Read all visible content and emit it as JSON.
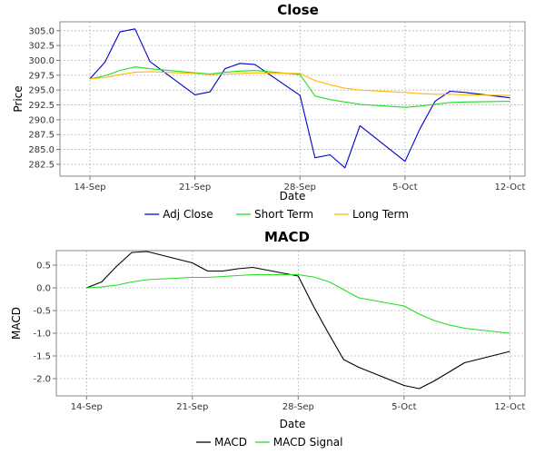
{
  "chart_data": [
    {
      "type": "line",
      "title": "Close",
      "xlabel": "Date",
      "ylabel": "Price",
      "xlim": [
        "2015-09-12",
        "2015-10-13"
      ],
      "ylim": [
        280.5,
        306.5
      ],
      "x_ticks": [
        {
          "date": "2015-09-14",
          "label": "14-Sep"
        },
        {
          "date": "2015-09-21",
          "label": "21-Sep"
        },
        {
          "date": "2015-09-28",
          "label": "28-Sep"
        },
        {
          "date": "2015-10-05",
          "label": "5-Oct"
        },
        {
          "date": "2015-10-12",
          "label": "12-Oct"
        }
      ],
      "y_ticks": [
        "282.5",
        "285.0",
        "287.5",
        "290.0",
        "292.5",
        "295.0",
        "297.5",
        "300.0",
        "302.5",
        "305.0"
      ],
      "grid": true,
      "legend": "bottom",
      "x": [
        "2015-09-14",
        "2015-09-15",
        "2015-09-16",
        "2015-09-17",
        "2015-09-18",
        "2015-09-21",
        "2015-09-22",
        "2015-09-23",
        "2015-09-24",
        "2015-09-25",
        "2015-09-28",
        "2015-09-29",
        "2015-09-30",
        "2015-10-01",
        "2015-10-02",
        "2015-10-05",
        "2015-10-06",
        "2015-10-07",
        "2015-10-08",
        "2015-10-09",
        "2015-10-12"
      ],
      "series": [
        {
          "name": "Adj Close",
          "color": "#0000cc",
          "values": [
            296.9,
            299.7,
            304.8,
            305.3,
            299.8,
            294.2,
            294.7,
            298.6,
            299.5,
            299.3,
            294.1,
            283.6,
            284.1,
            281.9,
            289.0,
            283.0,
            288.5,
            293.1,
            294.8,
            294.6,
            293.7
          ]
        },
        {
          "name": "Short Term",
          "color": "#22dd22",
          "values": [
            296.9,
            297.4,
            298.3,
            298.9,
            298.6,
            297.9,
            297.7,
            298.0,
            298.2,
            298.3,
            297.6,
            294.0,
            293.4,
            293.0,
            292.6,
            292.1,
            292.3,
            292.6,
            292.9,
            293.0,
            293.1
          ]
        },
        {
          "name": "Long Term",
          "color": "#ffbb00",
          "values": [
            296.9,
            297.1,
            297.6,
            298.0,
            298.1,
            297.8,
            297.6,
            297.7,
            297.8,
            297.9,
            297.8,
            296.6,
            295.9,
            295.3,
            295.0,
            294.6,
            294.4,
            294.3,
            294.3,
            294.2,
            294.1
          ]
        }
      ]
    },
    {
      "type": "line",
      "title": "MACD",
      "xlabel": "Date",
      "ylabel": "MACD",
      "xlim": [
        "2015-09-12",
        "2015-10-13"
      ],
      "ylim": [
        -2.38,
        0.82
      ],
      "x_ticks": [
        {
          "date": "2015-09-14",
          "label": "14-Sep"
        },
        {
          "date": "2015-09-21",
          "label": "21-Sep"
        },
        {
          "date": "2015-09-28",
          "label": "28-Sep"
        },
        {
          "date": "2015-10-05",
          "label": "5-Oct"
        },
        {
          "date": "2015-10-12",
          "label": "12-Oct"
        }
      ],
      "y_ticks": [
        "-2.0",
        "-1.5",
        "-1.0",
        "-0.5",
        "0.0",
        "0.5"
      ],
      "grid": true,
      "legend": "bottom",
      "x": [
        "2015-09-14",
        "2015-09-15",
        "2015-09-16",
        "2015-09-17",
        "2015-09-18",
        "2015-09-21",
        "2015-09-22",
        "2015-09-23",
        "2015-09-24",
        "2015-09-25",
        "2015-09-28",
        "2015-09-29",
        "2015-09-30",
        "2015-10-01",
        "2015-10-02",
        "2015-10-05",
        "2015-10-06",
        "2015-10-07",
        "2015-10-08",
        "2015-10-09",
        "2015-10-12"
      ],
      "series": [
        {
          "name": "MACD",
          "color": "#000000",
          "values": [
            0.0,
            0.13,
            0.48,
            0.78,
            0.8,
            0.55,
            0.37,
            0.37,
            0.42,
            0.45,
            0.26,
            -0.4,
            -1.0,
            -1.58,
            -1.75,
            -2.15,
            -2.22,
            -2.05,
            -1.85,
            -1.65,
            -1.4
          ]
        },
        {
          "name": "MACD Signal",
          "color": "#22dd22",
          "values": [
            0.0,
            0.02,
            0.06,
            0.13,
            0.18,
            0.23,
            0.23,
            0.25,
            0.27,
            0.29,
            0.29,
            0.24,
            0.14,
            -0.04,
            -0.22,
            -0.4,
            -0.58,
            -0.72,
            -0.82,
            -0.89,
            -1.0
          ]
        }
      ]
    }
  ]
}
